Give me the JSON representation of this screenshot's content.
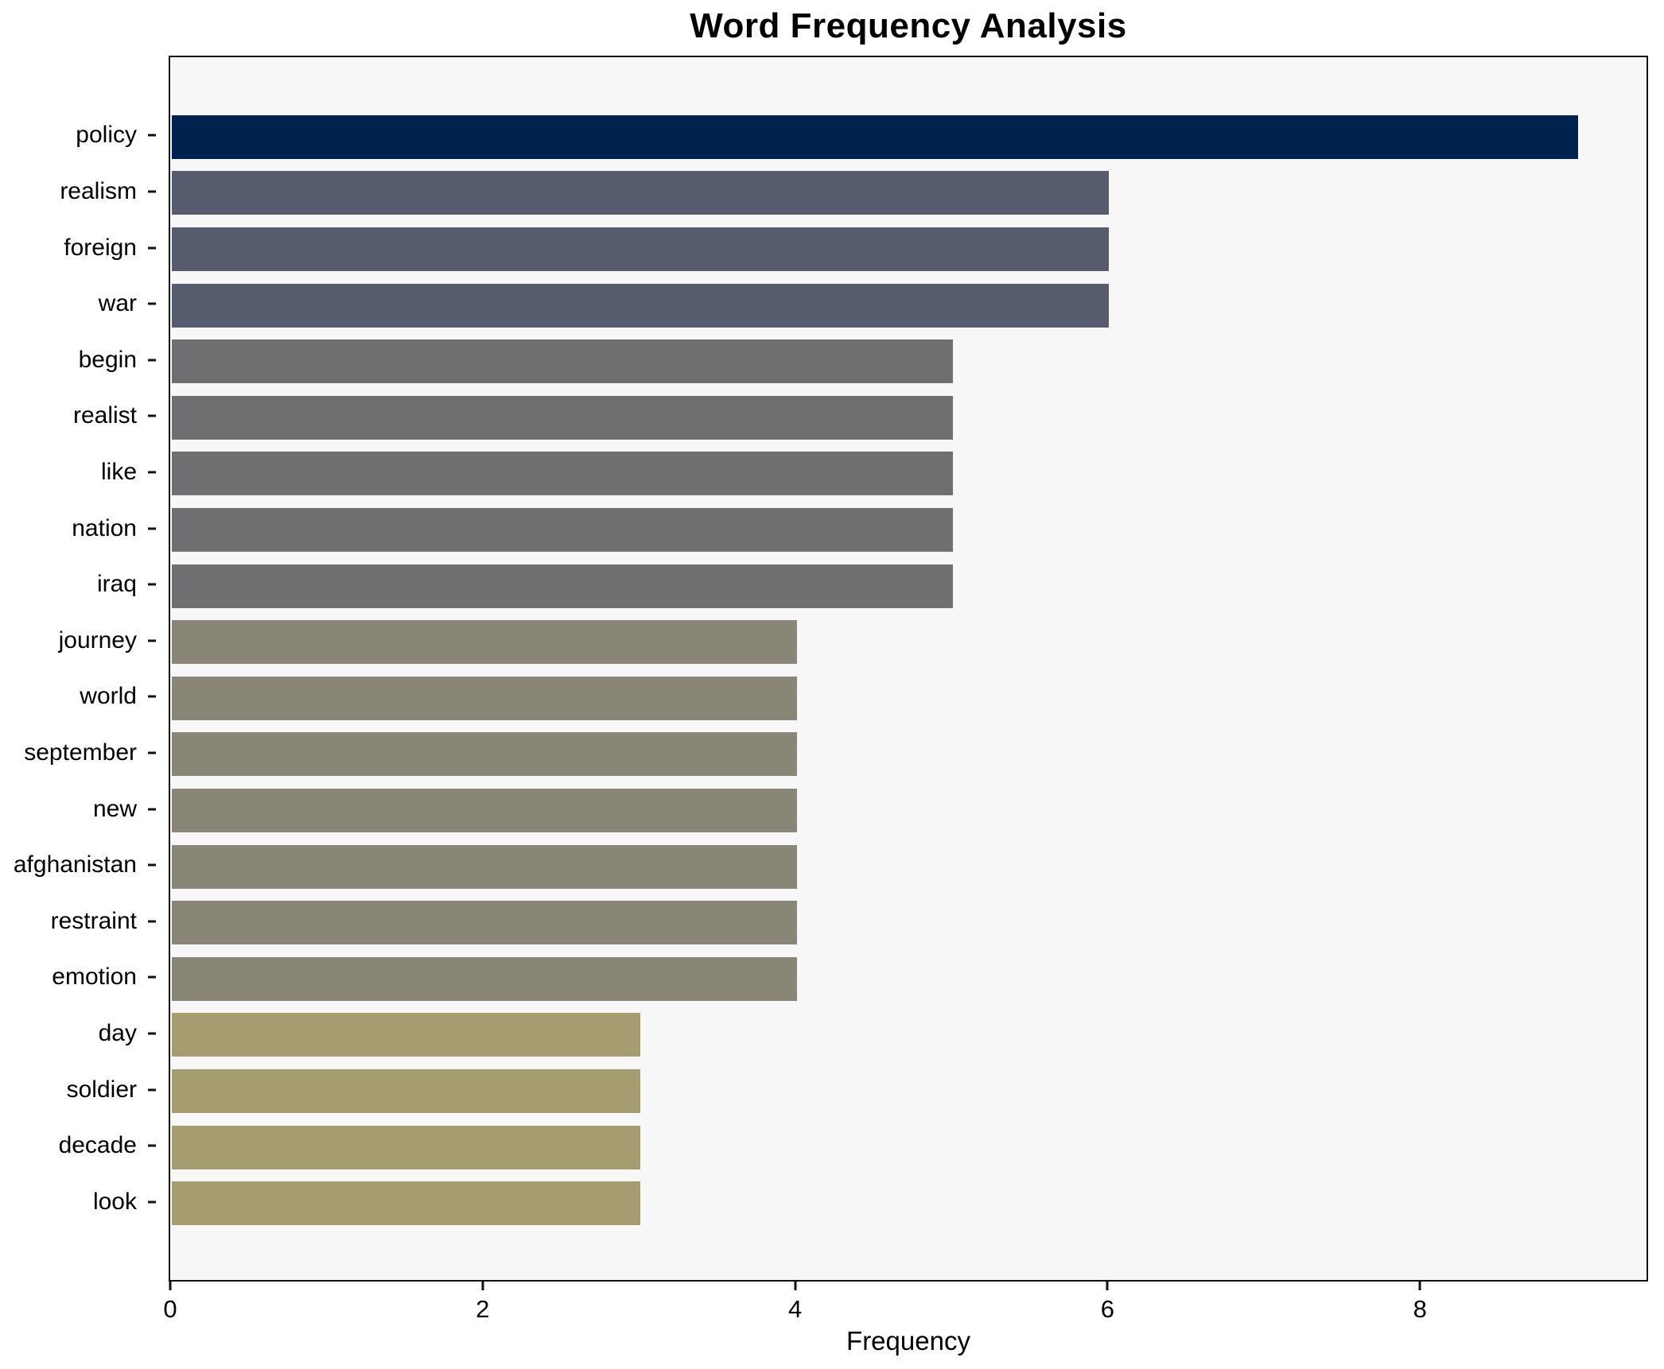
{
  "chart_data": {
    "type": "bar",
    "orientation": "horizontal",
    "title": "Word Frequency Analysis",
    "xlabel": "Frequency",
    "ylabel": "",
    "categories": [
      "policy",
      "realism",
      "foreign",
      "war",
      "begin",
      "realist",
      "like",
      "nation",
      "iraq",
      "journey",
      "world",
      "september",
      "new",
      "afghanistan",
      "restraint",
      "emotion",
      "day",
      "soldier",
      "decade",
      "look"
    ],
    "values": [
      9,
      6,
      6,
      6,
      5,
      5,
      5,
      5,
      5,
      4,
      4,
      4,
      4,
      4,
      4,
      4,
      3,
      3,
      3,
      3
    ],
    "bar_colors": [
      "#00224e",
      "#565c6d",
      "#565c6d",
      "#565c6d",
      "#6e6f71",
      "#6e6f71",
      "#6e6f71",
      "#6e6f71",
      "#6e6f71",
      "#8a8677",
      "#8a8677",
      "#8a8677",
      "#8a8677",
      "#8a8677",
      "#8a8677",
      "#8a8677",
      "#a59c70",
      "#a59c70",
      "#a59c70",
      "#a59c70"
    ],
    "xlim": [
      0,
      9.45
    ],
    "xticks": [
      "0",
      "2",
      "4",
      "6",
      "8"
    ],
    "grid": false,
    "legend": false,
    "colors": {
      "plot_background": "#f7f7f8",
      "figure_background": "#ffffff",
      "axis": "#111111",
      "text": "#000000"
    }
  }
}
